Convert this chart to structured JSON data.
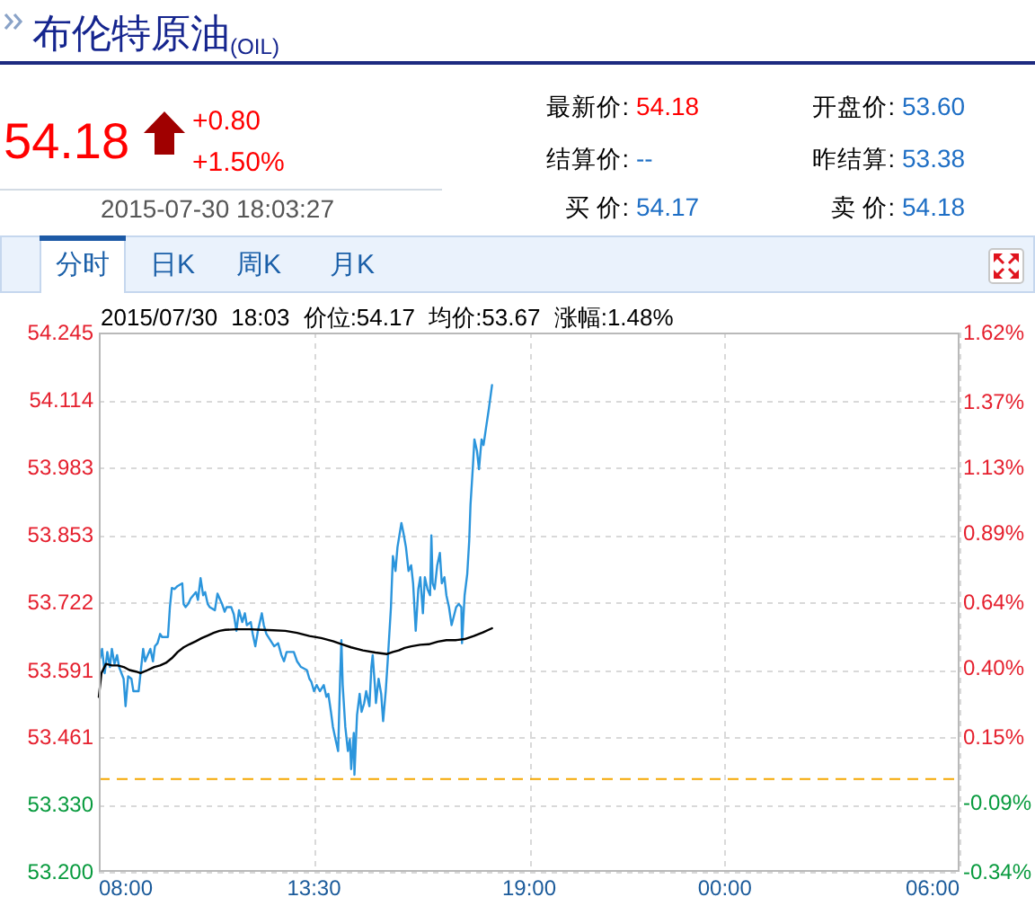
{
  "chart_data": {
    "type": "line",
    "title": "布伦特原油$_{(OIL)}$",
    "subtitle": "2015/07/30 18:03 价位:54.17 均价:53.67 涨幅:1.48%",
    "annotations": [
      "54.18",
      "+0.80",
      "+1.50%",
      "2015-07-30 18:03:27",
      "最新价:",
      "54.18",
      "结算价:",
      "--",
      "买 价:",
      "54.17",
      "开盘价:",
      "53.60",
      "昨结算:",
      "53.38",
      "卖 价:",
      "54.18",
      "分时",
      "日K",
      "周K",
      "月K"
    ],
    "xlim": [
      "2015-07-30T08:00",
      "2015-07-31T06:00"
    ],
    "xticks": [
      {
        "value": "2015-07-30T08:00",
        "label": "08:00"
      },
      {
        "value": "2015-07-30T13:30",
        "label": "13:30"
      },
      {
        "value": "2015-07-30T19:00",
        "label": "19:00"
      },
      {
        "value": "2015-07-31T00:00",
        "label": "00:00"
      },
      {
        "value": "2015-07-31T06:00",
        "label": "06:00"
      }
    ],
    "ylim": [
      53.2,
      54.245
    ],
    "yticks": [
      {
        "value": 53.2,
        "label": "53.200"
      },
      {
        "value": 53.33,
        "label": "53.330"
      },
      {
        "value": 53.461,
        "label": "53.461"
      },
      {
        "value": 53.591,
        "label": "53.591"
      },
      {
        "value": 53.722,
        "label": "53.722"
      },
      {
        "value": 53.853,
        "label": "53.853"
      },
      {
        "value": 53.983,
        "label": "53.983"
      },
      {
        "value": 54.114,
        "label": "54.114"
      },
      {
        "value": 54.245,
        "label": "54.245"
      }
    ],
    "y2lim": [
      -0.34,
      1.62
    ],
    "y2ticks": [
      {
        "value": -0.34,
        "label": "-0.34%"
      },
      {
        "value": -0.09,
        "label": "-0.09%"
      },
      {
        "value": 0.15,
        "label": "0.15%"
      },
      {
        "value": 0.4,
        "label": "0.40%"
      },
      {
        "value": 0.64,
        "label": "0.64%"
      },
      {
        "value": 0.89,
        "label": "0.89%"
      },
      {
        "value": 1.13,
        "label": "1.13%"
      },
      {
        "value": 1.37,
        "label": "1.37%"
      },
      {
        "value": 1.62,
        "label": "1.62%"
      }
    ],
    "grid": true,
    "ref_lines": [
      {
        "axis": "y",
        "value": 53.38,
        "color": "#f5a700",
        "line_style": "dashed"
      }
    ],
    "series": [
      {
        "color": "#2b95dc",
        "x": [
          "2015-07-30T08:02",
          "2015-07-30T08:05",
          "2015-07-30T08:09",
          "2015-07-30T08:13",
          "2015-07-30T08:17",
          "2015-07-30T08:20",
          "2015-07-30T08:24",
          "2015-07-30T08:28",
          "2015-07-30T08:31",
          "2015-07-30T08:38",
          "2015-07-30T08:41",
          "2015-07-30T08:45",
          "2015-07-30T08:50",
          "2015-07-30T08:53",
          "2015-07-30T09:01",
          "2015-07-30T09:04",
          "2015-07-30T09:08",
          "2015-07-30T09:11",
          "2015-07-30T09:19",
          "2015-07-30T09:23",
          "2015-07-30T09:26",
          "2015-07-30T09:30",
          "2015-07-30T09:34",
          "2015-07-30T09:37",
          "2015-07-30T09:46",
          "2015-07-30T09:49",
          "2015-07-30T09:52",
          "2015-07-30T09:56",
          "2015-07-30T10:01",
          "2015-07-30T10:08",
          "2015-07-30T10:10",
          "2015-07-30T10:13",
          "2015-07-30T10:17",
          "2015-07-30T10:21",
          "2015-07-30T10:29",
          "2015-07-30T10:32",
          "2015-07-30T10:36",
          "2015-07-30T10:40",
          "2015-07-30T10:43",
          "2015-07-30T10:47",
          "2015-07-30T10:50",
          "2015-07-30T10:58",
          "2015-07-30T11:02",
          "2015-07-30T11:09",
          "2015-07-30T11:13",
          "2015-07-30T11:16",
          "2015-07-30T11:23",
          "2015-07-30T11:27",
          "2015-07-30T11:31",
          "2015-07-30T11:35",
          "2015-07-30T11:40",
          "2015-07-30T11:44",
          "2015-07-30T11:47",
          "2015-07-30T11:53",
          "2015-07-30T11:56",
          "2015-07-30T12:00",
          "2015-07-30T12:04",
          "2015-07-30T12:10",
          "2015-07-30T12:13",
          "2015-07-30T12:17",
          "2015-07-30T12:29",
          "2015-07-30T12:35",
          "2015-07-30T12:40",
          "2015-07-30T12:44",
          "2015-07-30T12:48",
          "2015-07-30T12:59",
          "2015-07-30T13:04",
          "2015-07-30T13:10",
          "2015-07-30T13:19",
          "2015-07-30T13:23",
          "2015-07-30T13:26",
          "2015-07-30T13:30",
          "2015-07-30T13:34",
          "2015-07-30T13:39",
          "2015-07-30T13:45",
          "2015-07-30T13:49",
          "2015-07-30T13:52",
          "2015-07-30T13:56",
          "2015-07-30T13:59",
          "2015-07-30T14:03",
          "2015-07-30T14:07",
          "2015-07-30T14:10",
          "2015-07-30T14:12",
          "2015-07-30T14:14",
          "2015-07-30T14:18",
          "2015-07-30T14:22",
          "2015-07-30T14:25",
          "2015-07-30T14:27",
          "2015-07-30T14:31",
          "2015-07-30T14:32",
          "2015-07-30T14:34",
          "2015-07-30T14:36",
          "2015-07-30T14:40",
          "2015-07-30T14:43",
          "2015-07-30T14:47",
          "2015-07-30T14:50",
          "2015-07-30T14:55",
          "2015-07-30T14:58",
          "2015-07-30T15:00",
          "2015-07-30T15:04",
          "2015-07-30T15:05",
          "2015-07-30T15:09",
          "2015-07-30T15:13",
          "2015-07-30T15:16",
          "2015-07-30T15:20",
          "2015-07-30T15:23",
          "2015-07-30T15:28",
          "2015-07-30T15:31",
          "2015-07-30T15:35",
          "2015-07-30T15:38",
          "2015-07-30T15:44",
          "2015-07-30T15:47",
          "2015-07-30T15:51",
          "2015-07-30T15:55",
          "2015-07-30T15:59",
          "2015-07-30T16:02",
          "2015-07-30T16:06",
          "2015-07-30T16:10",
          "2015-07-30T16:13",
          "2015-07-30T16:17",
          "2015-07-30T16:20",
          "2015-07-30T16:24",
          "2015-07-30T16:28",
          "2015-07-30T16:30",
          "2015-07-30T16:32",
          "2015-07-30T16:35",
          "2015-07-30T16:39",
          "2015-07-30T16:43",
          "2015-07-30T16:46",
          "2015-07-30T16:50",
          "2015-07-30T16:53",
          "2015-07-30T16:57",
          "2015-07-30T17:01",
          "2015-07-30T17:08",
          "2015-07-30T17:12",
          "2015-07-30T17:16",
          "2015-07-30T17:17",
          "2015-07-30T17:21",
          "2015-07-30T17:25",
          "2015-07-30T17:28",
          "2015-07-30T17:30",
          "2015-07-30T17:34",
          "2015-07-30T17:36",
          "2015-07-30T17:40",
          "2015-07-30T17:43",
          "2015-07-30T17:47",
          "2015-07-30T17:50",
          "2015-07-30T17:54",
          "2015-07-30T17:58",
          "2015-07-30T18:03"
        ],
        "values": [
          53.614,
          53.632,
          53.585,
          53.626,
          53.597,
          53.632,
          53.603,
          53.62,
          53.597,
          53.574,
          53.521,
          53.579,
          53.574,
          53.55,
          53.55,
          53.585,
          53.632,
          53.608,
          53.632,
          53.608,
          53.637,
          53.643,
          53.661,
          53.655,
          53.655,
          53.713,
          53.75,
          53.748,
          53.754,
          53.759,
          53.719,
          53.713,
          53.719,
          53.73,
          53.742,
          53.727,
          53.769,
          53.736,
          53.742,
          53.719,
          53.713,
          53.707,
          53.739,
          53.719,
          53.704,
          53.713,
          53.713,
          53.699,
          53.667,
          53.707,
          53.684,
          53.701,
          53.678,
          53.684,
          53.661,
          53.637,
          53.667,
          53.701,
          53.678,
          53.661,
          53.637,
          53.643,
          53.62,
          53.608,
          53.626,
          53.626,
          53.608,
          53.597,
          53.591,
          53.574,
          53.568,
          53.55,
          53.562,
          53.55,
          53.562,
          53.539,
          53.545,
          53.51,
          53.481,
          53.457,
          53.434,
          53.574,
          53.649,
          53.562,
          53.481,
          53.434,
          53.457,
          53.399,
          53.469,
          53.388,
          53.446,
          53.504,
          53.545,
          53.51,
          53.527,
          53.55,
          53.521,
          53.597,
          53.62,
          53.55,
          53.527,
          53.574,
          53.545,
          53.492,
          53.55,
          53.608,
          53.713,
          53.812,
          53.783,
          53.829,
          53.876,
          53.858,
          53.829,
          53.783,
          53.794,
          53.759,
          53.667,
          53.748,
          53.771,
          53.701,
          53.771,
          53.748,
          53.736,
          53.852,
          53.759,
          53.748,
          53.794,
          53.818,
          53.759,
          53.771,
          53.736,
          53.713,
          53.678,
          53.713,
          53.719,
          53.713,
          53.643,
          53.736,
          53.777,
          53.841,
          53.911,
          53.992,
          54.038,
          54.015,
          53.98,
          54.038,
          54.027,
          54.062,
          54.096,
          54.143
        ]
      },
      {
        "color": "#000000",
        "x": [
          "2015-07-30T08:00",
          "2015-07-30T08:04",
          "2015-07-30T08:11",
          "2015-07-30T08:20",
          "2015-07-30T08:29",
          "2015-07-30T08:38",
          "2015-07-30T08:47",
          "2015-07-30T08:57",
          "2015-07-30T09:04",
          "2015-07-30T09:15",
          "2015-07-30T09:25",
          "2015-07-30T09:34",
          "2015-07-30T09:43",
          "2015-07-30T09:52",
          "2015-07-30T10:01",
          "2015-07-30T10:10",
          "2015-07-30T10:19",
          "2015-07-30T10:29",
          "2015-07-30T10:38",
          "2015-07-30T10:47",
          "2015-07-30T10:56",
          "2015-07-30T11:05",
          "2015-07-30T11:14",
          "2015-07-30T11:32",
          "2015-07-30T11:51",
          "2015-07-30T12:10",
          "2015-07-30T12:28",
          "2015-07-30T12:46",
          "2015-07-30T13:04",
          "2015-07-30T13:23",
          "2015-07-30T13:41",
          "2015-07-30T13:59",
          "2015-07-30T14:13",
          "2015-07-30T14:27",
          "2015-07-30T14:45",
          "2015-07-30T15:04",
          "2015-07-30T15:22",
          "2015-07-30T15:31",
          "2015-07-30T15:40",
          "2015-07-30T15:49",
          "2015-07-30T15:59",
          "2015-07-30T16:13",
          "2015-07-30T16:26",
          "2015-07-30T16:40",
          "2015-07-30T16:53",
          "2015-07-30T17:07",
          "2015-07-30T17:21",
          "2015-07-30T17:35",
          "2015-07-30T17:49",
          "2015-07-30T18:03"
        ],
        "values": [
          53.539,
          53.585,
          53.603,
          53.6,
          53.6,
          53.597,
          53.591,
          53.588,
          53.585,
          53.591,
          53.597,
          53.6,
          53.605,
          53.614,
          53.626,
          53.635,
          53.641,
          53.647,
          53.653,
          53.658,
          53.663,
          53.667,
          53.669,
          53.67,
          53.67,
          53.669,
          53.668,
          53.667,
          53.663,
          53.657,
          53.653,
          53.647,
          53.641,
          53.635,
          53.629,
          53.625,
          53.622,
          53.626,
          53.629,
          53.634,
          53.637,
          53.64,
          53.641,
          53.646,
          53.649,
          53.649,
          53.651,
          53.657,
          53.664,
          53.672
        ]
      }
    ]
  }
}
